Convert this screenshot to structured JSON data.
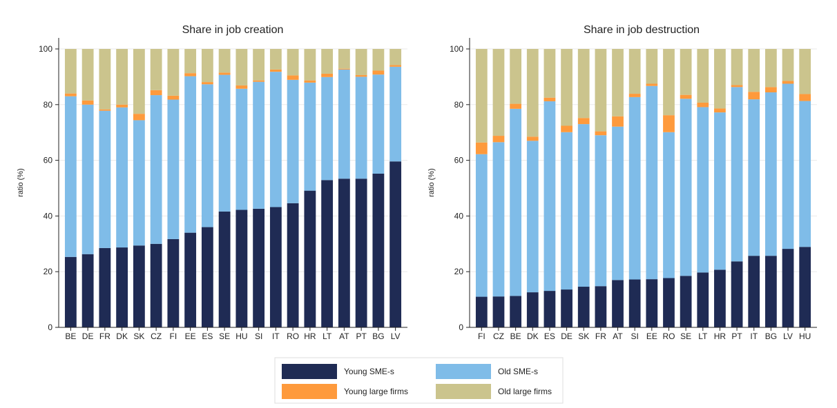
{
  "colors": {
    "young_sme": "#1f2b54",
    "old_sme": "#7fbce8",
    "young_large": "#fe9a3c",
    "old_large": "#cbc48d",
    "grid": "#eaeaea",
    "axis": "#222222"
  },
  "legend": {
    "items": [
      {
        "key": "young_sme",
        "label": "Young SME-s"
      },
      {
        "key": "old_sme",
        "label": "Old SME-s"
      },
      {
        "key": "young_large",
        "label": "Young large firms"
      },
      {
        "key": "old_large",
        "label": "Old large firms"
      }
    ]
  },
  "chart_data": [
    {
      "type": "bar",
      "stacked": true,
      "title": "Share in job creation",
      "ylabel": "ratio (%)",
      "ylim": [
        0,
        100
      ],
      "yticks": [
        0,
        20,
        40,
        60,
        80,
        100
      ],
      "grid": true,
      "categories": [
        "BE",
        "DE",
        "FR",
        "DK",
        "SK",
        "CZ",
        "FI",
        "EE",
        "ES",
        "SE",
        "HU",
        "SI",
        "IT",
        "RO",
        "HR",
        "LT",
        "AT",
        "PT",
        "BG",
        "LV"
      ],
      "series": [
        {
          "key": "young_sme",
          "name": "Young SME-s",
          "values": [
            25.3,
            26.3,
            28.5,
            28.7,
            29.4,
            30,
            31.7,
            34,
            36,
            41.6,
            42.2,
            42.6,
            43.2,
            44.6,
            49.1,
            52.9,
            53.4,
            53.4,
            55.2,
            59.6
          ]
        },
        {
          "key": "old_sme",
          "name": "Old SME-s",
          "values": [
            57.7,
            53.7,
            49.3,
            50.3,
            45,
            53.4,
            50.1,
            56.2,
            51.3,
            49.1,
            43.5,
            45.6,
            48.6,
            44.3,
            38.8,
            37,
            39.2,
            36.6,
            35.6,
            34
          ]
        },
        {
          "key": "young_large",
          "name": "Young large firms",
          "values": [
            1,
            1.5,
            0.5,
            1,
            2.3,
            1.8,
            1.4,
            1.1,
            0.8,
            0.8,
            1.2,
            0.5,
            0.8,
            1.6,
            0.8,
            1.2,
            0.3,
            0.6,
            1.4,
            0.6
          ]
        },
        {
          "key": "old_large",
          "name": "Old large firms",
          "values": [
            16,
            18.5,
            21.7,
            20,
            23.3,
            14.8,
            16.8,
            8.7,
            11.9,
            8.5,
            13.1,
            11.3,
            7.4,
            9.5,
            11.3,
            8.9,
            7.1,
            9.4,
            7.8,
            5.8
          ]
        }
      ]
    },
    {
      "type": "bar",
      "stacked": true,
      "title": "Share in job destruction",
      "ylabel": "ratio (%)",
      "ylim": [
        0,
        100
      ],
      "yticks": [
        0,
        20,
        40,
        60,
        80,
        100
      ],
      "grid": true,
      "categories": [
        "FI",
        "CZ",
        "BE",
        "DK",
        "ES",
        "DE",
        "SK",
        "FR",
        "AT",
        "SI",
        "EE",
        "RO",
        "SE",
        "LT",
        "HR",
        "PT",
        "IT",
        "BG",
        "LV",
        "HU"
      ],
      "series": [
        {
          "key": "young_sme",
          "name": "Young SME-s",
          "values": [
            11,
            11.1,
            11.3,
            12.6,
            13.1,
            13.6,
            14.6,
            14.8,
            17,
            17.2,
            17.3,
            17.7,
            18.5,
            19.7,
            20.7,
            23.7,
            25.7,
            25.7,
            28.2,
            28.9
          ]
        },
        {
          "key": "old_sme",
          "name": "Old SME-s",
          "values": [
            51.2,
            55.4,
            67.2,
            54.4,
            68.1,
            56.5,
            58.4,
            54.2,
            55.1,
            65.5,
            69.4,
            52.4,
            63.6,
            59.4,
            56.5,
            62.6,
            56.2,
            58.7,
            59.3,
            52.4
          ]
        },
        {
          "key": "young_large",
          "name": "Young large firms",
          "values": [
            4.2,
            2.3,
            1.8,
            1.5,
            1.3,
            2.3,
            2.2,
            1.4,
            3.7,
            1.2,
            0.8,
            6.1,
            1.4,
            1.6,
            1.4,
            0.7,
            2.7,
            1.9,
            1,
            2.5
          ]
        },
        {
          "key": "old_large",
          "name": "Old large firms",
          "values": [
            33.6,
            31.2,
            19.7,
            31.5,
            17.5,
            27.6,
            24.8,
            29.6,
            24.2,
            16.1,
            12.5,
            23.8,
            16.5,
            19.3,
            21.4,
            13,
            15.4,
            13.7,
            11.5,
            16.2
          ]
        }
      ]
    }
  ]
}
